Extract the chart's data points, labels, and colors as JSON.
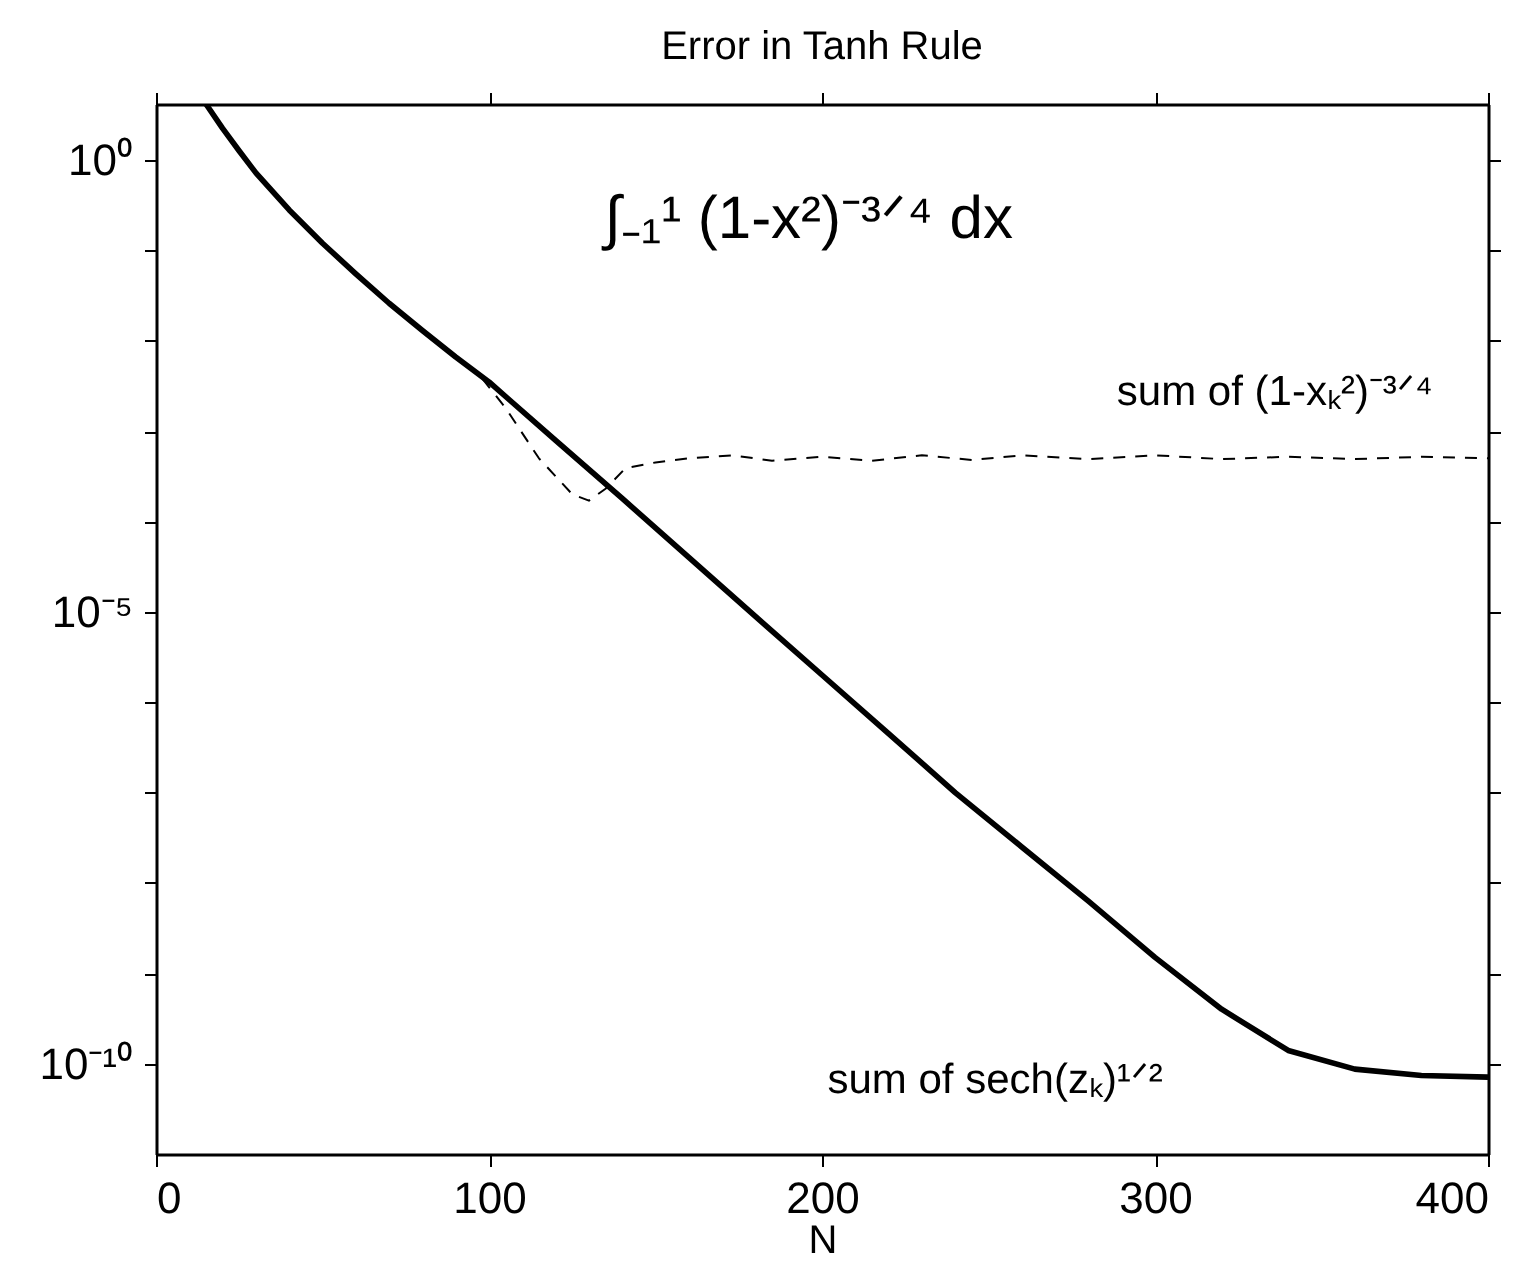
{
  "chart_data": {
    "type": "line",
    "title": "Error in Tanh Rule",
    "xlabel": "N",
    "xlim": [
      0,
      400
    ],
    "xticks": [
      0,
      100,
      200,
      300,
      400
    ],
    "ylim": [
      1e-11,
      4.17
    ],
    "log": true,
    "yticks": [
      {
        "value": 1,
        "label": "10⁰"
      },
      {
        "value": 0.1,
        "label": null
      },
      {
        "value": 0.01,
        "label": null
      },
      {
        "value": 0.001,
        "label": null
      },
      {
        "value": 0.0001,
        "label": null
      },
      {
        "value": 1e-05,
        "label": "10⁻⁵"
      },
      {
        "value": 1e-06,
        "label": null
      },
      {
        "value": 1e-07,
        "label": null
      },
      {
        "value": 1e-08,
        "label": null
      },
      {
        "value": 1e-09,
        "label": null
      },
      {
        "value": 1e-10,
        "label": "10⁻¹⁰"
      }
    ],
    "grid": false,
    "marker": "none",
    "legend": false,
    "series": [
      {
        "name": "sum of sech(zₖ)¹ᐟ²",
        "color": "#000000",
        "line_style": "solid",
        "x": [
          15,
          20,
          25,
          30,
          40,
          50,
          60,
          70,
          80,
          90,
          100,
          120,
          140,
          160,
          180,
          200,
          220,
          240,
          260,
          280,
          300,
          320,
          340,
          360,
          380,
          400
        ],
        "values": [
          4.17,
          2.24,
          1.26,
          0.72,
          0.28,
          0.12,
          0.055,
          0.026,
          0.013,
          0.0066,
          0.0035,
          0.00079,
          0.00018,
          4e-05,
          8.9e-06,
          2e-06,
          4.5e-07,
          1e-07,
          2.5e-08,
          6.3e-09,
          1.5e-09,
          4e-10,
          1.4e-10,
          8.7e-11,
          7.4e-11,
          7.1e-11
        ]
      },
      {
        "name": "sum of (1-xₖ²)⁻³ᐟ⁴",
        "color": "#000000",
        "line_style": "dashed",
        "x": [
          98,
          105,
          115,
          125,
          130,
          135,
          141,
          150,
          160,
          173,
          185,
          200,
          215,
          230,
          245,
          260,
          280,
          300,
          320,
          340,
          360,
          380,
          400
        ],
        "values": [
          0.0038,
          0.0018,
          0.0005,
          0.0002,
          0.00017,
          0.00023,
          0.00039,
          0.00045,
          0.0005,
          0.00054,
          0.00047,
          0.00052,
          0.00047,
          0.00054,
          0.00048,
          0.00054,
          0.00049,
          0.00054,
          0.00049,
          0.00052,
          0.00049,
          0.00052,
          0.0005
        ]
      }
    ],
    "annotations": [
      "∫₋₁¹ (1-x²)⁻³ᐟ⁴ dx"
    ]
  }
}
